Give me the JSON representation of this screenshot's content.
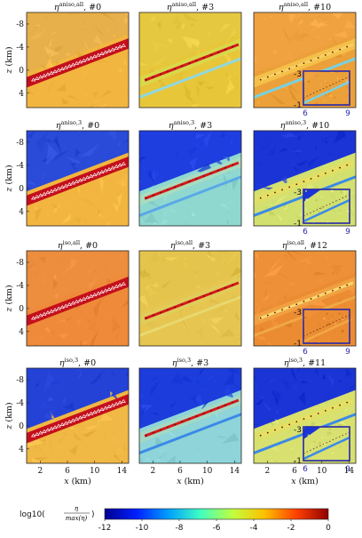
{
  "figure": {
    "rows": [
      {
        "panels": [
          {
            "eta": "η",
            "sup": "aniso,all",
            "iter": "#0",
            "bg": "#f2b640",
            "above": "#e8b04a",
            "band": "#c4101c",
            "stripe": "#c4101c",
            "stripe2": null,
            "inset": false,
            "facets": true
          },
          {
            "eta": "η",
            "sup": "aniso,all",
            "iter": "#3",
            "bg": "#e8c63a",
            "above": "#e6c840",
            "band": "#d8d84a",
            "stripe": "#d41a1a",
            "stripe2": "#8fd8e0",
            "inset": false,
            "facets": true
          },
          {
            "eta": "η",
            "sup": "aniso,all",
            "iter": "#10",
            "bg": "#eca03a",
            "above": "#f0a240",
            "band": "#f4c04a",
            "stripe": "#f6d060",
            "stripe2": "#74d2e6",
            "inset": true,
            "facets": true
          }
        ]
      },
      {
        "panels": [
          {
            "eta": "η",
            "sup": "aniso,3",
            "iter": "#0",
            "bg": "#f2b640",
            "above": "#2a4ad8",
            "band": "#c4101c",
            "stripe": "#c4101c",
            "stripe2": null,
            "inset": false,
            "facets": true
          },
          {
            "eta": "η",
            "sup": "aniso,3",
            "iter": "#3",
            "bg": "#8ed8d0",
            "above": "#1e3ee0",
            "band": "#a8dcc0",
            "stripe": "#d41a1a",
            "stripe2": "#5aa8e8",
            "inset": false,
            "facets": true
          },
          {
            "eta": "η",
            "sup": "aniso,3",
            "iter": "#10",
            "bg": "#d2e070",
            "above": "#1a34d6",
            "band": "#dce068",
            "stripe": "#e8e060",
            "stripe2": "#3a8ae8",
            "inset": true,
            "facets": true
          }
        ]
      },
      {
        "panels": [
          {
            "eta": "η",
            "sup": "iso,all",
            "iter": "#0",
            "bg": "#ee8a3a",
            "above": "#ec8e3e",
            "band": "#c4101c",
            "stripe": "#c4101c",
            "stripe2": null,
            "inset": false,
            "facets": true
          },
          {
            "eta": "η",
            "sup": "iso,all",
            "iter": "#3",
            "bg": "#e6c650",
            "above": "#e4c44c",
            "band": "#e0cc5a",
            "stripe": "#d41a1a",
            "stripe2": "#e8d870",
            "inset": false,
            "facets": true
          },
          {
            "eta": "η",
            "sup": "iso,all",
            "iter": "#12",
            "bg": "#ec8c32",
            "above": "#ee9038",
            "band": "#f0a040",
            "stripe": "#f8d870",
            "stripe2": "#f0a844",
            "inset": true,
            "facets": true
          }
        ]
      },
      {
        "panels": [
          {
            "eta": "η",
            "sup": "iso,3",
            "iter": "#0",
            "bg": "#f0b844",
            "above": "#2442d6",
            "band": "#c4101c",
            "stripe": "#c4101c",
            "stripe2": null,
            "inset": false,
            "facets": true
          },
          {
            "eta": "η",
            "sup": "iso,3",
            "iter": "#3",
            "bg": "#8ed4d8",
            "above": "#1c3cdc",
            "band": "#a4d8c4",
            "stripe": "#d41a1a",
            "stripe2": "#3a8ae8",
            "inset": false,
            "facets": true
          },
          {
            "eta": "η",
            "sup": "iso,3",
            "iter": "#11",
            "bg": "#d8e070",
            "above": "#1a34d6",
            "band": "#dce068",
            "stripe": "#e8e060",
            "stripe2": "#3a8ae8",
            "inset": true,
            "facets": true
          }
        ]
      }
    ],
    "x_ticks_first": [
      "2",
      "6",
      "10",
      "14"
    ],
    "x_ticks_other": [
      "2",
      "6",
      "10",
      "14"
    ],
    "y_ticks": [
      "-8",
      "-4",
      "0",
      "4"
    ],
    "x_label": "x",
    "x_label_unit": "(km)",
    "y_label": "z",
    "y_label_unit": "(km)",
    "inset_ticks": {
      "y_top": "-3",
      "y_bottom": "-1",
      "x_left": "6",
      "x_right": "9"
    },
    "colorbar": {
      "label": "log10",
      "frac_num": "η",
      "frac_den": "max(η)",
      "ticks": [
        "-12",
        "-10",
        "-8",
        "-6",
        "-4",
        "-2",
        "0"
      ],
      "range": [
        -12,
        0
      ],
      "colors": [
        "#00008f",
        "#0020ff",
        "#00a0ff",
        "#40ffc0",
        "#c0ff40",
        "#ffc000",
        "#ff4000",
        "#8f0000"
      ]
    }
  }
}
